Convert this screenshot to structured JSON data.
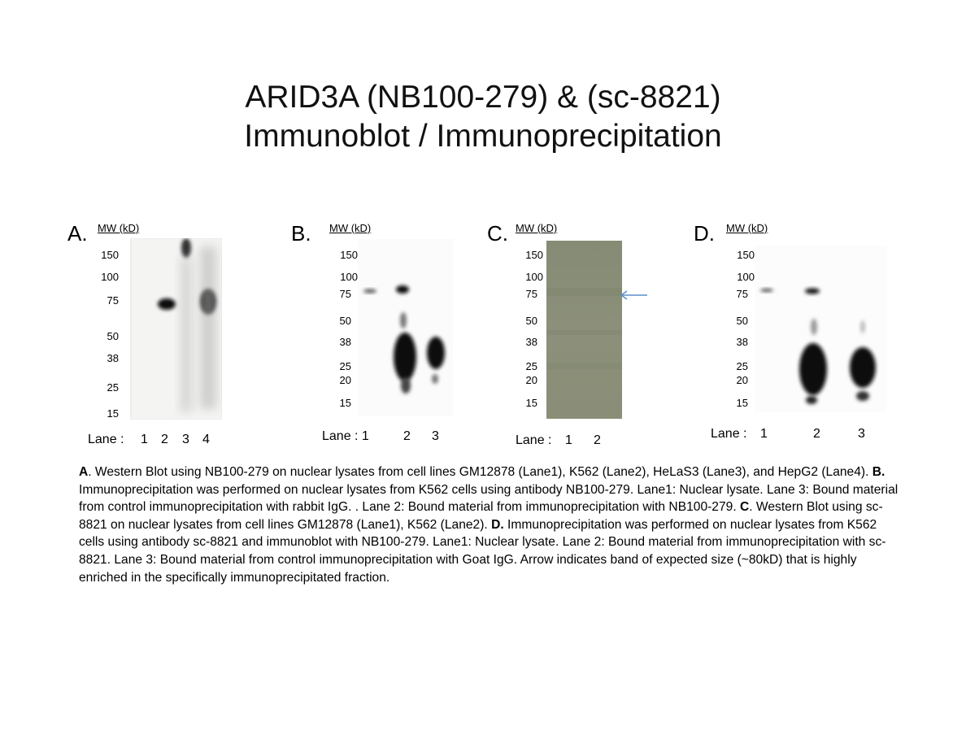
{
  "title": {
    "line1": "ARID3A (NB100-279) & (sc-8821)",
    "line2": "Immunoblot / Immunoprecipitation"
  },
  "panels": [
    {
      "label": "A.",
      "mw_header": "MW (kD)",
      "markers": [
        "150",
        "100",
        "75",
        "50",
        "38",
        "25",
        "15"
      ],
      "lane_prefix": "Lane :",
      "lanes": [
        "1",
        "2",
        "3",
        "4"
      ]
    },
    {
      "label": "B.",
      "mw_header": "MW (kD)",
      "markers": [
        "150",
        "100",
        "75",
        "50",
        "38",
        "25",
        "20",
        "15"
      ],
      "lane_prefix": "Lane : 1",
      "lanes": [
        "2",
        "3"
      ]
    },
    {
      "label": "C.",
      "mw_header": "MW (kD)",
      "markers": [
        "150",
        "100",
        "75",
        "50",
        "38",
        "25",
        "20",
        "15"
      ],
      "lane_prefix": "Lane :",
      "lanes": [
        "1",
        "2"
      ]
    },
    {
      "label": "D.",
      "mw_header": "MW (kD)",
      "markers": [
        "150",
        "100",
        "75",
        "50",
        "38",
        "25",
        "20",
        "15"
      ],
      "lane_prefix": "Lane :",
      "lanes": [
        "1",
        "2",
        "3"
      ]
    }
  ],
  "caption": {
    "a_label": "A",
    "a_text": ". Western Blot using NB100-279 on nuclear lysates from cell lines GM12878 (Lane1), K562 (Lane2), HeLaS3 (Lane3), and HepG2 (Lane4). ",
    "b_label": "B.",
    "b_text": " Immunoprecipitation was performed on nuclear lysates from K562 cells using antibody NB100-279. Lane1: Nuclear lysate.  Lane 3: Bound material from control immunoprecipitation with rabbit IgG. .  Lane 2: Bound material from immunoprecipitation with NB100-279. ",
    "c_label": "C",
    "c_text": ". Western Blot using sc-8821 on nuclear lysates from cell lines GM12878 (Lane1), K562 (Lane2). ",
    "d_label": "D.",
    "d_text": " Immunoprecipitation was performed on nuclear lysates from K562 cells using antibody sc-8821 and immunoblot with NB100-279.  Lane1: Nuclear lysate.  Lane 2: Bound material from immunoprecipitation with sc-8821.  Lane 3:  Bound material from control immunoprecipitation with Goat IgG.  Arrow indicates band of expected size (~80kD) that is highly enriched in the specifically immunoprecipitated fraction."
  },
  "colors": {
    "arrow": "#5b8fc9",
    "blot_c_bg": "#8a8f78"
  }
}
